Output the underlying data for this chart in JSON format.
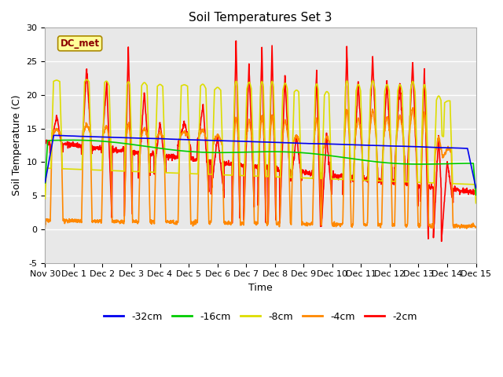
{
  "title": "Soil Temperatures Set 3",
  "xlabel": "Time",
  "ylabel": "Soil Temperature (C)",
  "ylim": [
    -5,
    30
  ],
  "xlim_days": [
    0,
    15
  ],
  "xtick_labels": [
    "Nov 30",
    "Dec 1",
    "Dec 2",
    "Dec 3",
    "Dec 4",
    "Dec 5",
    "Dec 6",
    "Dec 7",
    "Dec 8",
    "Dec 9",
    "Dec 10",
    "Dec 11",
    "Dec 12",
    "Dec 13",
    "Dec 14",
    "Dec 15"
  ],
  "ytick_vals": [
    -5,
    0,
    5,
    10,
    15,
    20,
    25,
    30
  ],
  "colors": {
    "-32cm": "#0000ee",
    "-16cm": "#00cc00",
    "-8cm": "#dddd00",
    "-4cm": "#ff8800",
    "-2cm": "#ff0000"
  },
  "legend_labels": [
    "-32cm",
    "-16cm",
    "-8cm",
    "-4cm",
    "-2cm"
  ],
  "annotation_text": "DC_met",
  "annotation_bg": "#ffff99",
  "annotation_border": "#aa8800",
  "background_plot": "#e8e8e8",
  "background_fig": "#ffffff",
  "title_fontsize": 11,
  "axis_fontsize": 9,
  "tick_fontsize": 8
}
